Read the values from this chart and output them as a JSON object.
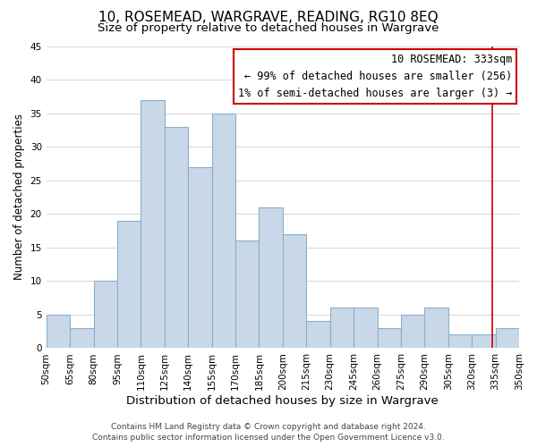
{
  "title": "10, ROSEMEAD, WARGRAVE, READING, RG10 8EQ",
  "subtitle": "Size of property relative to detached houses in Wargrave",
  "xlabel": "Distribution of detached houses by size in Wargrave",
  "ylabel": "Number of detached properties",
  "footer_line1": "Contains HM Land Registry data © Crown copyright and database right 2024.",
  "footer_line2": "Contains public sector information licensed under the Open Government Licence v3.0.",
  "bin_labels": [
    "50sqm",
    "65sqm",
    "80sqm",
    "95sqm",
    "110sqm",
    "125sqm",
    "140sqm",
    "155sqm",
    "170sqm",
    "185sqm",
    "200sqm",
    "215sqm",
    "230sqm",
    "245sqm",
    "260sqm",
    "275sqm",
    "290sqm",
    "305sqm",
    "320sqm",
    "335sqm",
    "350sqm"
  ],
  "bin_edges": [
    50,
    65,
    80,
    95,
    110,
    125,
    140,
    155,
    170,
    185,
    200,
    215,
    230,
    245,
    260,
    275,
    290,
    305,
    320,
    335,
    350
  ],
  "bar_heights": [
    5,
    3,
    10,
    19,
    37,
    33,
    27,
    35,
    16,
    21,
    17,
    4,
    6,
    6,
    3,
    5,
    6,
    2,
    2,
    3,
    0
  ],
  "bar_color": "#c8d8e8",
  "bar_edge_color": "#8ab0c8",
  "ylim": [
    0,
    45
  ],
  "yticks": [
    0,
    5,
    10,
    15,
    20,
    25,
    30,
    35,
    40,
    45
  ],
  "property_line_x": 333,
  "property_line_color": "#cc0000",
  "annotation_title": "10 ROSEMEAD: 333sqm",
  "annotation_line1": "← 99% of detached houses are smaller (256)",
  "annotation_line2": "1% of semi-detached houses are larger (3) →",
  "annotation_box_color": "#cc0000",
  "annotation_bg_color": "#ffffff",
  "title_fontsize": 11,
  "subtitle_fontsize": 9.5,
  "xlabel_fontsize": 9.5,
  "ylabel_fontsize": 8.5,
  "tick_fontsize": 7.5,
  "annotation_fontsize": 8.5,
  "footer_fontsize": 6.5
}
